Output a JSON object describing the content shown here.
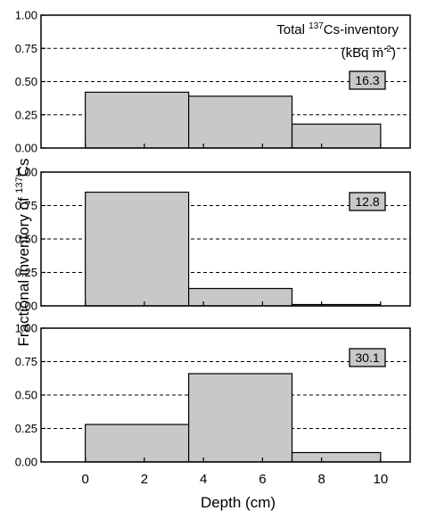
{
  "chart_data": {
    "type": "bar",
    "xlabel": "Depth (cm)",
    "ylabel_prefix": "Fractional inventory of ",
    "ylabel_sup": "137",
    "ylabel_suffix": "Cs",
    "legend": {
      "prefix": "Total ",
      "sup": "137",
      "suffix": "Cs-inventory",
      "unit_prefix": "(kBq m",
      "unit_sup": "-2",
      "unit_suffix": ")",
      "placement": "top-right"
    },
    "xlim": [
      -1.5,
      11
    ],
    "xticks": [
      "0",
      "2",
      "4",
      "6",
      "8",
      "10"
    ],
    "ylim": [
      0,
      1
    ],
    "yticks": [
      "0.00",
      "0.25",
      "0.50",
      "0.75",
      "1.00"
    ],
    "grid": "horizontal dashed",
    "bar_color": "#c8c8c8",
    "panels": [
      {
        "total_inventory": "16.3",
        "bars": [
          {
            "x_start": 0,
            "x_end": 3.5,
            "value": 0.42
          },
          {
            "x_start": 3.5,
            "x_end": 7,
            "value": 0.39
          },
          {
            "x_start": 7,
            "x_end": 10,
            "value": 0.18
          }
        ]
      },
      {
        "total_inventory": "12.8",
        "bars": [
          {
            "x_start": 0,
            "x_end": 3.5,
            "value": 0.85
          },
          {
            "x_start": 3.5,
            "x_end": 7,
            "value": 0.13
          },
          {
            "x_start": 7,
            "x_end": 10,
            "value": 0.01
          }
        ]
      },
      {
        "total_inventory": "30.1",
        "bars": [
          {
            "x_start": 0,
            "x_end": 3.5,
            "value": 0.28
          },
          {
            "x_start": 3.5,
            "x_end": 7,
            "value": 0.66
          },
          {
            "x_start": 7,
            "x_end": 10,
            "value": 0.07
          }
        ]
      }
    ]
  }
}
